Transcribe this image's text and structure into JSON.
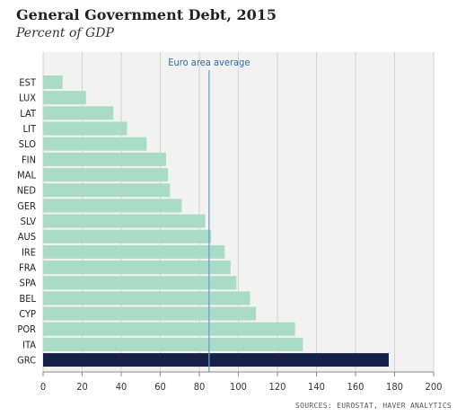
{
  "header": {
    "title": "General Government Debt, 2015",
    "subtitle": "Percent of GDP"
  },
  "source": "SOURCES: EUROSTAT, HAVER ANALYTICS",
  "colors": {
    "bar": "#aadbc8",
    "highlight": "#16214a",
    "average_line": "#6a9ec0",
    "average_label": "#2e6c98",
    "grid": "#d3d3d3",
    "plot_background": "#f2f2f2"
  },
  "chart_data": {
    "type": "bar",
    "orientation": "horizontal",
    "title": "General Government Debt, 2015",
    "subtitle": "Percent of GDP",
    "categories": [
      "EST",
      "LUX",
      "LAT",
      "LIT",
      "SLO",
      "FIN",
      "MAL",
      "NED",
      "GER",
      "SLV",
      "AUS",
      "IRE",
      "FRA",
      "SPA",
      "BEL",
      "CYP",
      "POR",
      "ITA",
      "GRC"
    ],
    "values": [
      10,
      22,
      36,
      43,
      53,
      63,
      64,
      65,
      71,
      83,
      86,
      93,
      96,
      99,
      106,
      109,
      129,
      133,
      177
    ],
    "highlight": "GRC",
    "xlim": [
      0,
      200
    ],
    "xticks": [
      0,
      20,
      40,
      60,
      80,
      100,
      120,
      140,
      160,
      180,
      200
    ],
    "grid": true,
    "reference_line": {
      "label": "Euro area average",
      "value": 85
    }
  }
}
